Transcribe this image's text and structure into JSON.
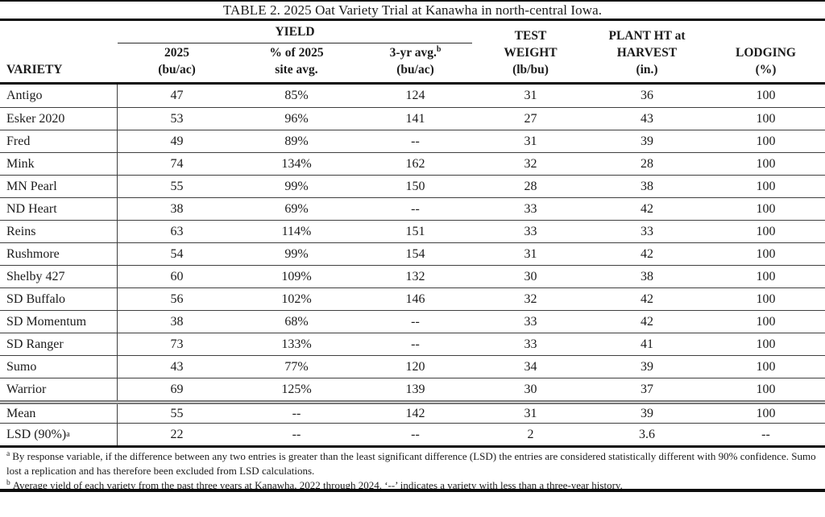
{
  "title": "TABLE 2. 2025 Oat Variety Trial at Kanawha in north-central Iowa.",
  "table": {
    "group_header": "YIELD",
    "columns": [
      {
        "line1": "VARIETY"
      },
      {
        "line1": "2025",
        "line2": "(bu/ac)"
      },
      {
        "line1": "% of 2025",
        "line2": "site avg."
      },
      {
        "line1": "3-yr avg.",
        "sup": "b",
        "line2": "(bu/ac)"
      },
      {
        "line1": "TEST",
        "line2": "WEIGHT",
        "line3": "(lb/bu)"
      },
      {
        "line1": "PLANT HT at",
        "line2": "HARVEST",
        "line3": "(in.)"
      },
      {
        "line1": "LODGING",
        "line2": "(%)"
      }
    ],
    "rows": [
      {
        "variety": "Antigo",
        "values": [
          "47",
          "85%",
          "124",
          "31",
          "36",
          "100"
        ]
      },
      {
        "variety": "Esker 2020",
        "values": [
          "53",
          "96%",
          "141",
          "27",
          "43",
          "100"
        ]
      },
      {
        "variety": "Fred",
        "values": [
          "49",
          "89%",
          "--",
          "31",
          "39",
          "100"
        ]
      },
      {
        "variety": "Mink",
        "values": [
          "74",
          "134%",
          "162",
          "32",
          "28",
          "100"
        ]
      },
      {
        "variety": "MN Pearl",
        "values": [
          "55",
          "99%",
          "150",
          "28",
          "38",
          "100"
        ]
      },
      {
        "variety": "ND Heart",
        "values": [
          "38",
          "69%",
          "--",
          "33",
          "42",
          "100"
        ]
      },
      {
        "variety": "Reins",
        "values": [
          "63",
          "114%",
          "151",
          "33",
          "33",
          "100"
        ]
      },
      {
        "variety": "Rushmore",
        "values": [
          "54",
          "99%",
          "154",
          "31",
          "42",
          "100"
        ]
      },
      {
        "variety": "Shelby 427",
        "values": [
          "60",
          "109%",
          "132",
          "30",
          "38",
          "100"
        ]
      },
      {
        "variety": "SD Buffalo",
        "values": [
          "56",
          "102%",
          "146",
          "32",
          "42",
          "100"
        ]
      },
      {
        "variety": "SD Momentum",
        "values": [
          "38",
          "68%",
          "--",
          "33",
          "42",
          "100"
        ]
      },
      {
        "variety": "SD Ranger",
        "values": [
          "73",
          "133%",
          "--",
          "33",
          "41",
          "100"
        ]
      },
      {
        "variety": "Sumo",
        "values": [
          "43",
          "77%",
          "120",
          "34",
          "39",
          "100"
        ]
      },
      {
        "variety": "Warrior",
        "values": [
          "69",
          "125%",
          "139",
          "30",
          "37",
          "100"
        ]
      },
      {
        "variety": "Mean",
        "values": [
          "55",
          "--",
          "142",
          "31",
          "39",
          "100"
        ],
        "type": "summary"
      },
      {
        "variety": "LSD (90%)",
        "sup": "a",
        "values": [
          "22",
          "--",
          "--",
          "2",
          "3.6",
          "--"
        ],
        "type": "summary"
      }
    ]
  },
  "footnotes": [
    {
      "sup": "a",
      "text": "By response variable, if the difference between any two entries is greater than the least significant difference (LSD) the entries are considered statistically different with 90% confidence. Sumo lost a replication and has therefore been excluded from LSD calculations."
    },
    {
      "sup": "b",
      "text": "Average yield of each variety from the past three years at Kanawha, 2022 through 2024. ‘--’ indicates a variety with less than a three-year history."
    }
  ],
  "colors": {
    "background": "#ffffff",
    "text": "#1b1b1b",
    "border_heavy": "#0d0d0d",
    "border_light": "#3f3f3f",
    "double_rule": "#777777"
  }
}
